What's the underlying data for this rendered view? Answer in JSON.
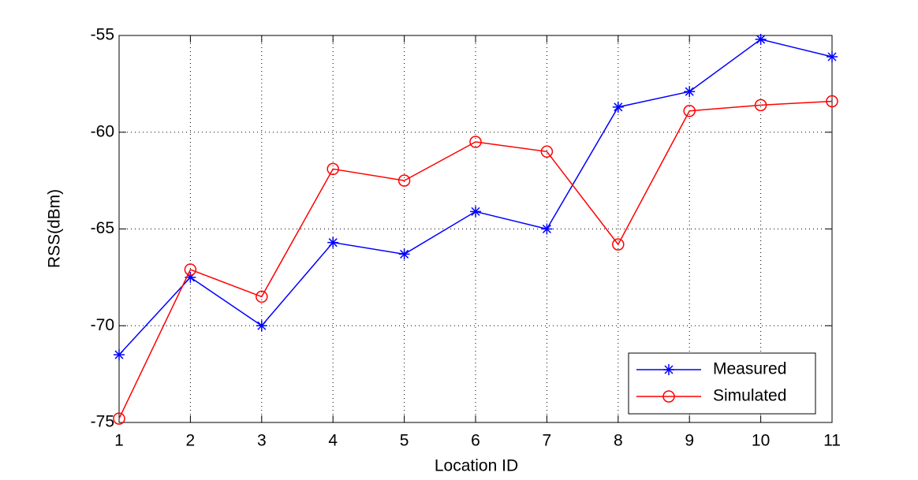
{
  "chart_data": {
    "type": "line",
    "x_label": "Location ID",
    "y_label": "RSS(dBm)",
    "x": [
      1,
      2,
      3,
      4,
      5,
      6,
      7,
      8,
      9,
      10,
      11
    ],
    "xlim": [
      1,
      11
    ],
    "xticks": [
      1,
      2,
      3,
      4,
      5,
      6,
      7,
      8,
      9,
      10,
      11
    ],
    "ylim": [
      -75,
      -55
    ],
    "yticks": [
      -75,
      -70,
      -65,
      -60,
      -55
    ],
    "grid": true,
    "legend": "lower right",
    "series": [
      {
        "name": "Measured",
        "color": "#0000ff",
        "marker": "star",
        "values": [
          -71.5,
          -67.5,
          -70.0,
          -65.7,
          -66.3,
          -64.1,
          -65.0,
          -58.7,
          -57.9,
          -55.2,
          -56.1
        ]
      },
      {
        "name": "Simulated",
        "color": "#ff0000",
        "marker": "circle",
        "values": [
          -74.8,
          -67.1,
          -68.5,
          -61.9,
          -62.5,
          -60.5,
          -61.0,
          -65.8,
          -58.9,
          -58.6,
          -58.4
        ]
      }
    ]
  }
}
